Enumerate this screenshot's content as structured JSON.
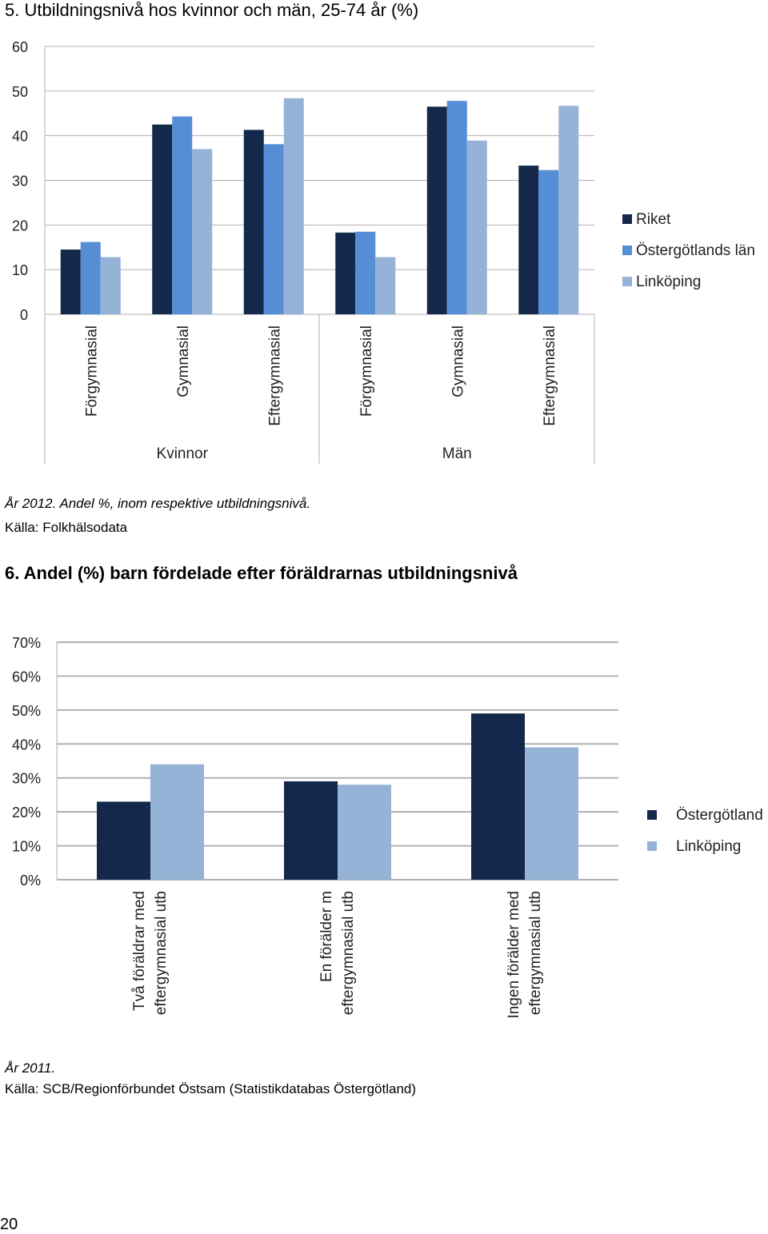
{
  "page_number": "20",
  "charts": {
    "c1": {
      "note1": "År 2012. Andel %, inom respektive utbildningsnivå.",
      "note2": "Källa: Folkhälsodata"
    },
    "c2": {
      "note1": "År 2011.",
      "note2": "Källa: SCB/Regionförbundet Östsam (Statistikdatabas Östergötland)"
    }
  },
  "chart_data": [
    {
      "type": "bar",
      "title": "5. Utbildningsnivå hos kvinnor och män, 25-74 år (%)",
      "xlabel": "",
      "ylabel": "",
      "ylim": [
        0,
        60
      ],
      "yticks": [
        "0",
        "10",
        "20",
        "30",
        "40",
        "50",
        "60"
      ],
      "grid": true,
      "legend_position": "right",
      "groups": [
        "Kvinnor",
        "Män"
      ],
      "categories": [
        "Förgymnasial",
        "Gymnasial",
        "Eftergymnasial",
        "Förgymnasial",
        "Gymnasial",
        "Eftergymnasial"
      ],
      "series": [
        {
          "name": "Riket",
          "color": "#14284b",
          "values": [
            14.5,
            42.5,
            41.3,
            18.3,
            46.5,
            33.3
          ]
        },
        {
          "name": "Östergötlands län",
          "color": "#558ed5",
          "values": [
            16.2,
            44.3,
            38.1,
            18.5,
            47.8,
            32.3
          ]
        },
        {
          "name": "Linköping",
          "color": "#95b3d7",
          "values": [
            12.8,
            37.0,
            48.4,
            12.8,
            38.9,
            46.7
          ]
        }
      ]
    },
    {
      "type": "bar",
      "title": "6. Andel (%) barn fördelade efter föräldrarnas utbildningsnivå",
      "xlabel": "",
      "ylabel": "",
      "ylim": [
        0,
        70
      ],
      "yticks": [
        "0%",
        "10%",
        "20%",
        "30%",
        "40%",
        "50%",
        "60%",
        "70%"
      ],
      "grid": true,
      "legend_position": "right",
      "categories": [
        [
          "Två föräldrar med",
          "eftergymnasial utb"
        ],
        [
          "En förälder m",
          "eftergymnasial utb"
        ],
        [
          "Ingen förälder med",
          "eftergymnasial utb"
        ]
      ],
      "series": [
        {
          "name": "Östergötland",
          "color": "#14284b",
          "values": [
            23,
            29,
            49
          ]
        },
        {
          "name": "Linköping",
          "color": "#95b3d7",
          "values": [
            34,
            28,
            39
          ]
        }
      ]
    }
  ]
}
